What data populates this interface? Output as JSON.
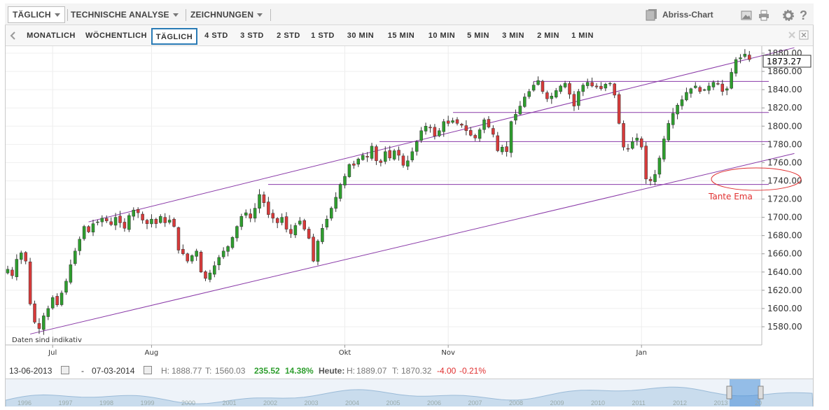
{
  "toolbar": {
    "period_menu": "TÄGLICH",
    "analysis_menu": "TECHNISCHE ANALYSE",
    "drawings_menu": "ZEICHNUNGEN",
    "abriss_label": "Abriss-Chart",
    "icons": [
      "image-icon",
      "print-icon",
      "gear-icon",
      "help-icon"
    ]
  },
  "intervals": [
    {
      "label": "MONATLICH",
      "active": false
    },
    {
      "label": "WÖCHENTLICH",
      "active": false
    },
    {
      "label": "TÄGLICH",
      "active": true
    },
    {
      "label": "4 STD",
      "active": false
    },
    {
      "label": "3 STD",
      "active": false
    },
    {
      "label": "2 STD",
      "active": false
    },
    {
      "label": "1 STD",
      "active": false
    },
    {
      "label": "30 MIN",
      "active": false
    },
    {
      "label": "15 MIN",
      "active": false
    },
    {
      "label": "10 MIN",
      "active": false
    },
    {
      "label": "5 MIN",
      "active": false
    },
    {
      "label": "3 MIN",
      "active": false
    },
    {
      "label": "2 MIN",
      "active": false
    },
    {
      "label": "1 MIN",
      "active": false
    }
  ],
  "chart_data": {
    "type": "candlestick",
    "ylim": [
      1565,
      1890
    ],
    "y_ticks": [
      1580,
      1600,
      1620,
      1640,
      1660,
      1680,
      1700,
      1720,
      1740,
      1760,
      1780,
      1800,
      1820,
      1840,
      1860,
      1880
    ],
    "x_ticks": [
      {
        "label": "Jul",
        "index": 10
      },
      {
        "label": "Aug",
        "index": 32
      },
      {
        "label": "Okt",
        "index": 75
      },
      {
        "label": "Nov",
        "index": 98
      },
      {
        "label": "Jan",
        "index": 141
      }
    ],
    "current_price": "1873.27",
    "note": "Daten sind indikativ",
    "annotation": "Tante Ema",
    "closes": [
      1643,
      1636,
      1654,
      1661,
      1652,
      1605,
      1585,
      1578,
      1592,
      1600,
      1612,
      1604,
      1617,
      1630,
      1648,
      1663,
      1676,
      1690,
      1684,
      1693,
      1695,
      1699,
      1696,
      1692,
      1700,
      1694,
      1688,
      1702,
      1708,
      1705,
      1697,
      1693,
      1698,
      1693,
      1701,
      1694,
      1697,
      1690,
      1664,
      1660,
      1652,
      1658,
      1663,
      1640,
      1633,
      1639,
      1647,
      1656,
      1663,
      1668,
      1678,
      1690,
      1701,
      1705,
      1699,
      1710,
      1725,
      1716,
      1703,
      1699,
      1694,
      1700,
      1687,
      1682,
      1691,
      1696,
      1687,
      1677,
      1652,
      1674,
      1688,
      1698,
      1710,
      1722,
      1736,
      1745,
      1758,
      1757,
      1764,
      1768,
      1766,
      1778,
      1762,
      1760,
      1772,
      1765,
      1773,
      1768,
      1757,
      1762,
      1772,
      1783,
      1795,
      1800,
      1798,
      1789,
      1795,
      1805,
      1803,
      1806,
      1803,
      1801,
      1795,
      1790,
      1787,
      1796,
      1807,
      1799,
      1791,
      1773,
      1777,
      1772,
      1805,
      1813,
      1822,
      1832,
      1838,
      1845,
      1850,
      1838,
      1830,
      1833,
      1839,
      1844,
      1847,
      1835,
      1822,
      1838,
      1845,
      1848,
      1844,
      1843,
      1841,
      1846,
      1847,
      1834,
      1803,
      1777,
      1775,
      1783,
      1787,
      1777,
      1742,
      1740,
      1747,
      1765,
      1786,
      1803,
      1814,
      1823,
      1829,
      1837,
      1841,
      1844,
      1838,
      1840,
      1844,
      1848,
      1846,
      1838,
      1841,
      1859,
      1873,
      1875,
      1879,
      1873
    ],
    "horizontal_lines": [
      1849,
      1815,
      1783,
      1736
    ],
    "channel": {
      "upper": [
        [
          18,
          1695
        ],
        [
          175,
          1886
        ]
      ],
      "lower": [
        [
          5,
          1572
        ],
        [
          175,
          1770
        ]
      ]
    }
  },
  "info": {
    "date_from": "13-06-2013",
    "date_to": "07-03-2014",
    "high_label": "H:",
    "high": "1888.77",
    "low_label": "T:",
    "low": "1560.03",
    "change": "235.52",
    "change_pct": "14.38%",
    "today_label": "Heute:",
    "today_high": "1889.07",
    "today_low": "1870.32",
    "today_change": "-4.00",
    "today_change_pct": "-0.21%"
  },
  "navigator": {
    "years": [
      "1996",
      "1997",
      "1998",
      "1999",
      "2000",
      "2001",
      "2002",
      "2003",
      "2004",
      "2005",
      "2006",
      "2007",
      "2008",
      "2009",
      "2010",
      "2011",
      "2012",
      "2013",
      "20"
    ]
  },
  "colors": {
    "up": "#2e9e2e",
    "down": "#d83a3a",
    "line": "#8a3aa8",
    "annot": "#e03030",
    "active": "#2a7bb5"
  }
}
